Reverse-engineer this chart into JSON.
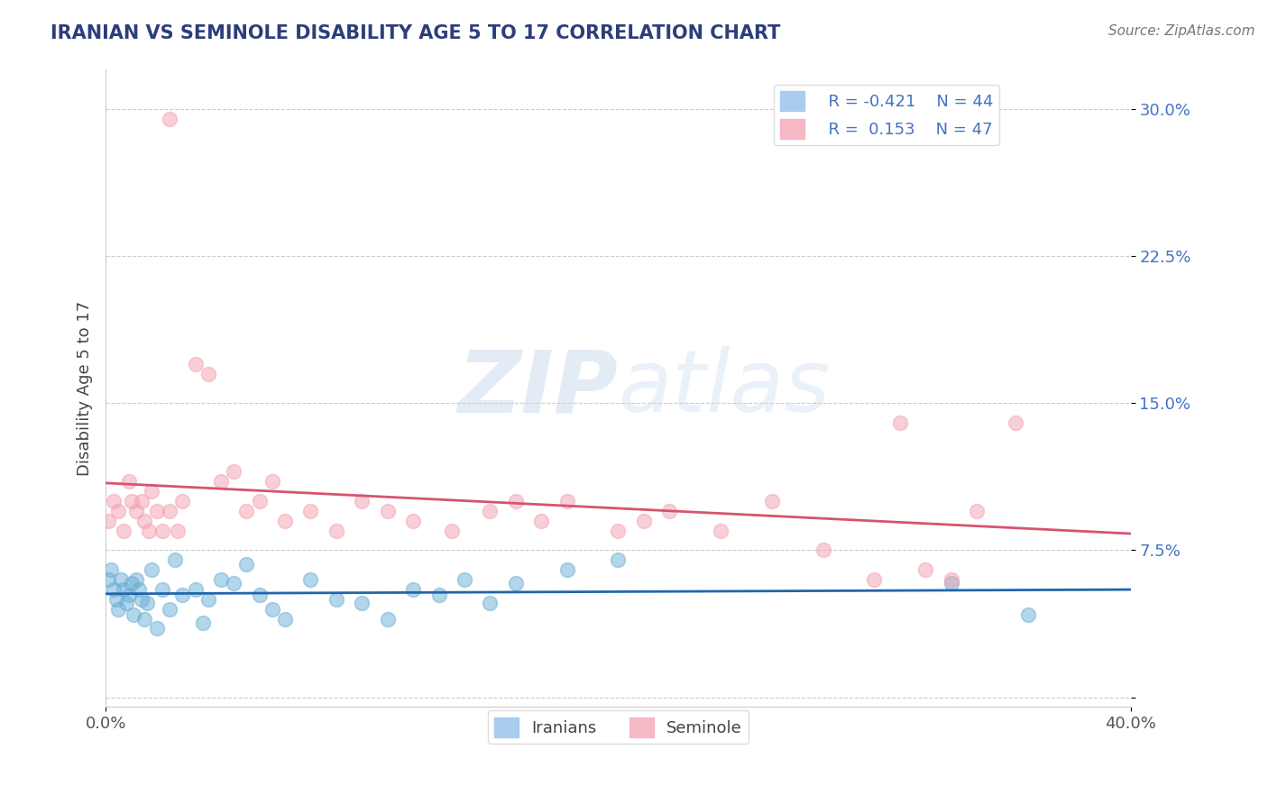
{
  "title": "IRANIAN VS SEMINOLE DISABILITY AGE 5 TO 17 CORRELATION CHART",
  "source": "Source: ZipAtlas.com",
  "ylabel": "Disability Age 5 to 17",
  "xlim": [
    0.0,
    0.4
  ],
  "ylim": [
    -0.005,
    0.32
  ],
  "yticks": [
    0.0,
    0.075,
    0.15,
    0.225,
    0.3
  ],
  "ytick_labels": [
    "",
    "7.5%",
    "15.0%",
    "22.5%",
    "30.0%"
  ],
  "xticks": [
    0.0,
    0.4
  ],
  "xtick_labels": [
    "0.0%",
    "40.0%"
  ],
  "legend_r1": "R = -0.421",
  "legend_n1": "N = 44",
  "legend_r2": "R =  0.153",
  "legend_n2": "N = 47",
  "iranian_color": "#6baed6",
  "seminole_color": "#f4a0b0",
  "line_iranian_color": "#2166ac",
  "line_seminole_color": "#d6546e",
  "title_color": "#2c3e7a",
  "source_color": "#777777",
  "watermark_zip": "ZIP",
  "watermark_atlas": "atlas",
  "background_color": "#ffffff",
  "grid_color": "#cccccc",
  "iranians_x": [
    0.001,
    0.002,
    0.003,
    0.004,
    0.005,
    0.006,
    0.007,
    0.008,
    0.009,
    0.01,
    0.011,
    0.012,
    0.013,
    0.014,
    0.015,
    0.016,
    0.018,
    0.02,
    0.022,
    0.025,
    0.027,
    0.03,
    0.035,
    0.038,
    0.04,
    0.045,
    0.05,
    0.055,
    0.06,
    0.065,
    0.07,
    0.08,
    0.09,
    0.1,
    0.11,
    0.12,
    0.13,
    0.14,
    0.15,
    0.16,
    0.18,
    0.2,
    0.33,
    0.36
  ],
  "iranians_y": [
    0.06,
    0.065,
    0.055,
    0.05,
    0.045,
    0.06,
    0.055,
    0.048,
    0.052,
    0.058,
    0.042,
    0.06,
    0.055,
    0.05,
    0.04,
    0.048,
    0.065,
    0.035,
    0.055,
    0.045,
    0.07,
    0.052,
    0.055,
    0.038,
    0.05,
    0.06,
    0.058,
    0.068,
    0.052,
    0.045,
    0.04,
    0.06,
    0.05,
    0.048,
    0.04,
    0.055,
    0.052,
    0.06,
    0.048,
    0.058,
    0.065,
    0.07,
    0.058,
    0.042
  ],
  "seminole_x": [
    0.001,
    0.003,
    0.005,
    0.007,
    0.009,
    0.01,
    0.012,
    0.014,
    0.015,
    0.017,
    0.018,
    0.02,
    0.022,
    0.025,
    0.028,
    0.03,
    0.035,
    0.04,
    0.045,
    0.05,
    0.055,
    0.06,
    0.065,
    0.07,
    0.08,
    0.09,
    0.1,
    0.11,
    0.12,
    0.135,
    0.15,
    0.16,
    0.17,
    0.18,
    0.2,
    0.21,
    0.22,
    0.24,
    0.26,
    0.28,
    0.3,
    0.31,
    0.32,
    0.33,
    0.34,
    0.355,
    0.025
  ],
  "seminole_y": [
    0.09,
    0.1,
    0.095,
    0.085,
    0.11,
    0.1,
    0.095,
    0.1,
    0.09,
    0.085,
    0.105,
    0.095,
    0.085,
    0.095,
    0.085,
    0.1,
    0.17,
    0.165,
    0.11,
    0.115,
    0.095,
    0.1,
    0.11,
    0.09,
    0.095,
    0.085,
    0.1,
    0.095,
    0.09,
    0.085,
    0.095,
    0.1,
    0.09,
    0.1,
    0.085,
    0.09,
    0.095,
    0.085,
    0.1,
    0.075,
    0.06,
    0.14,
    0.065,
    0.06,
    0.095,
    0.14,
    0.295
  ]
}
